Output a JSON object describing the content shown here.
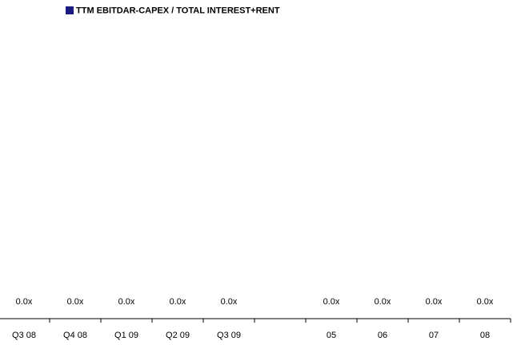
{
  "chart_data": {
    "type": "bar",
    "categories": [
      "Q3 08",
      "Q4 08",
      "Q1 09",
      "Q2 09",
      "Q3 09",
      null,
      "05",
      "06",
      "07",
      "08"
    ],
    "series": [
      {
        "name": "TTM EBITDAR-CAPEX / TOTAL INTEREST+RENT",
        "color": "#1a1a80",
        "values": [
          0,
          0,
          0,
          0,
          0,
          null,
          0,
          0,
          0,
          0
        ],
        "value_labels": [
          "0.0x",
          "0.0x",
          "0.0x",
          "0.0x",
          "0.0x",
          null,
          "0.0x",
          "0.0x",
          "0.0x",
          "0.0x"
        ]
      }
    ]
  }
}
